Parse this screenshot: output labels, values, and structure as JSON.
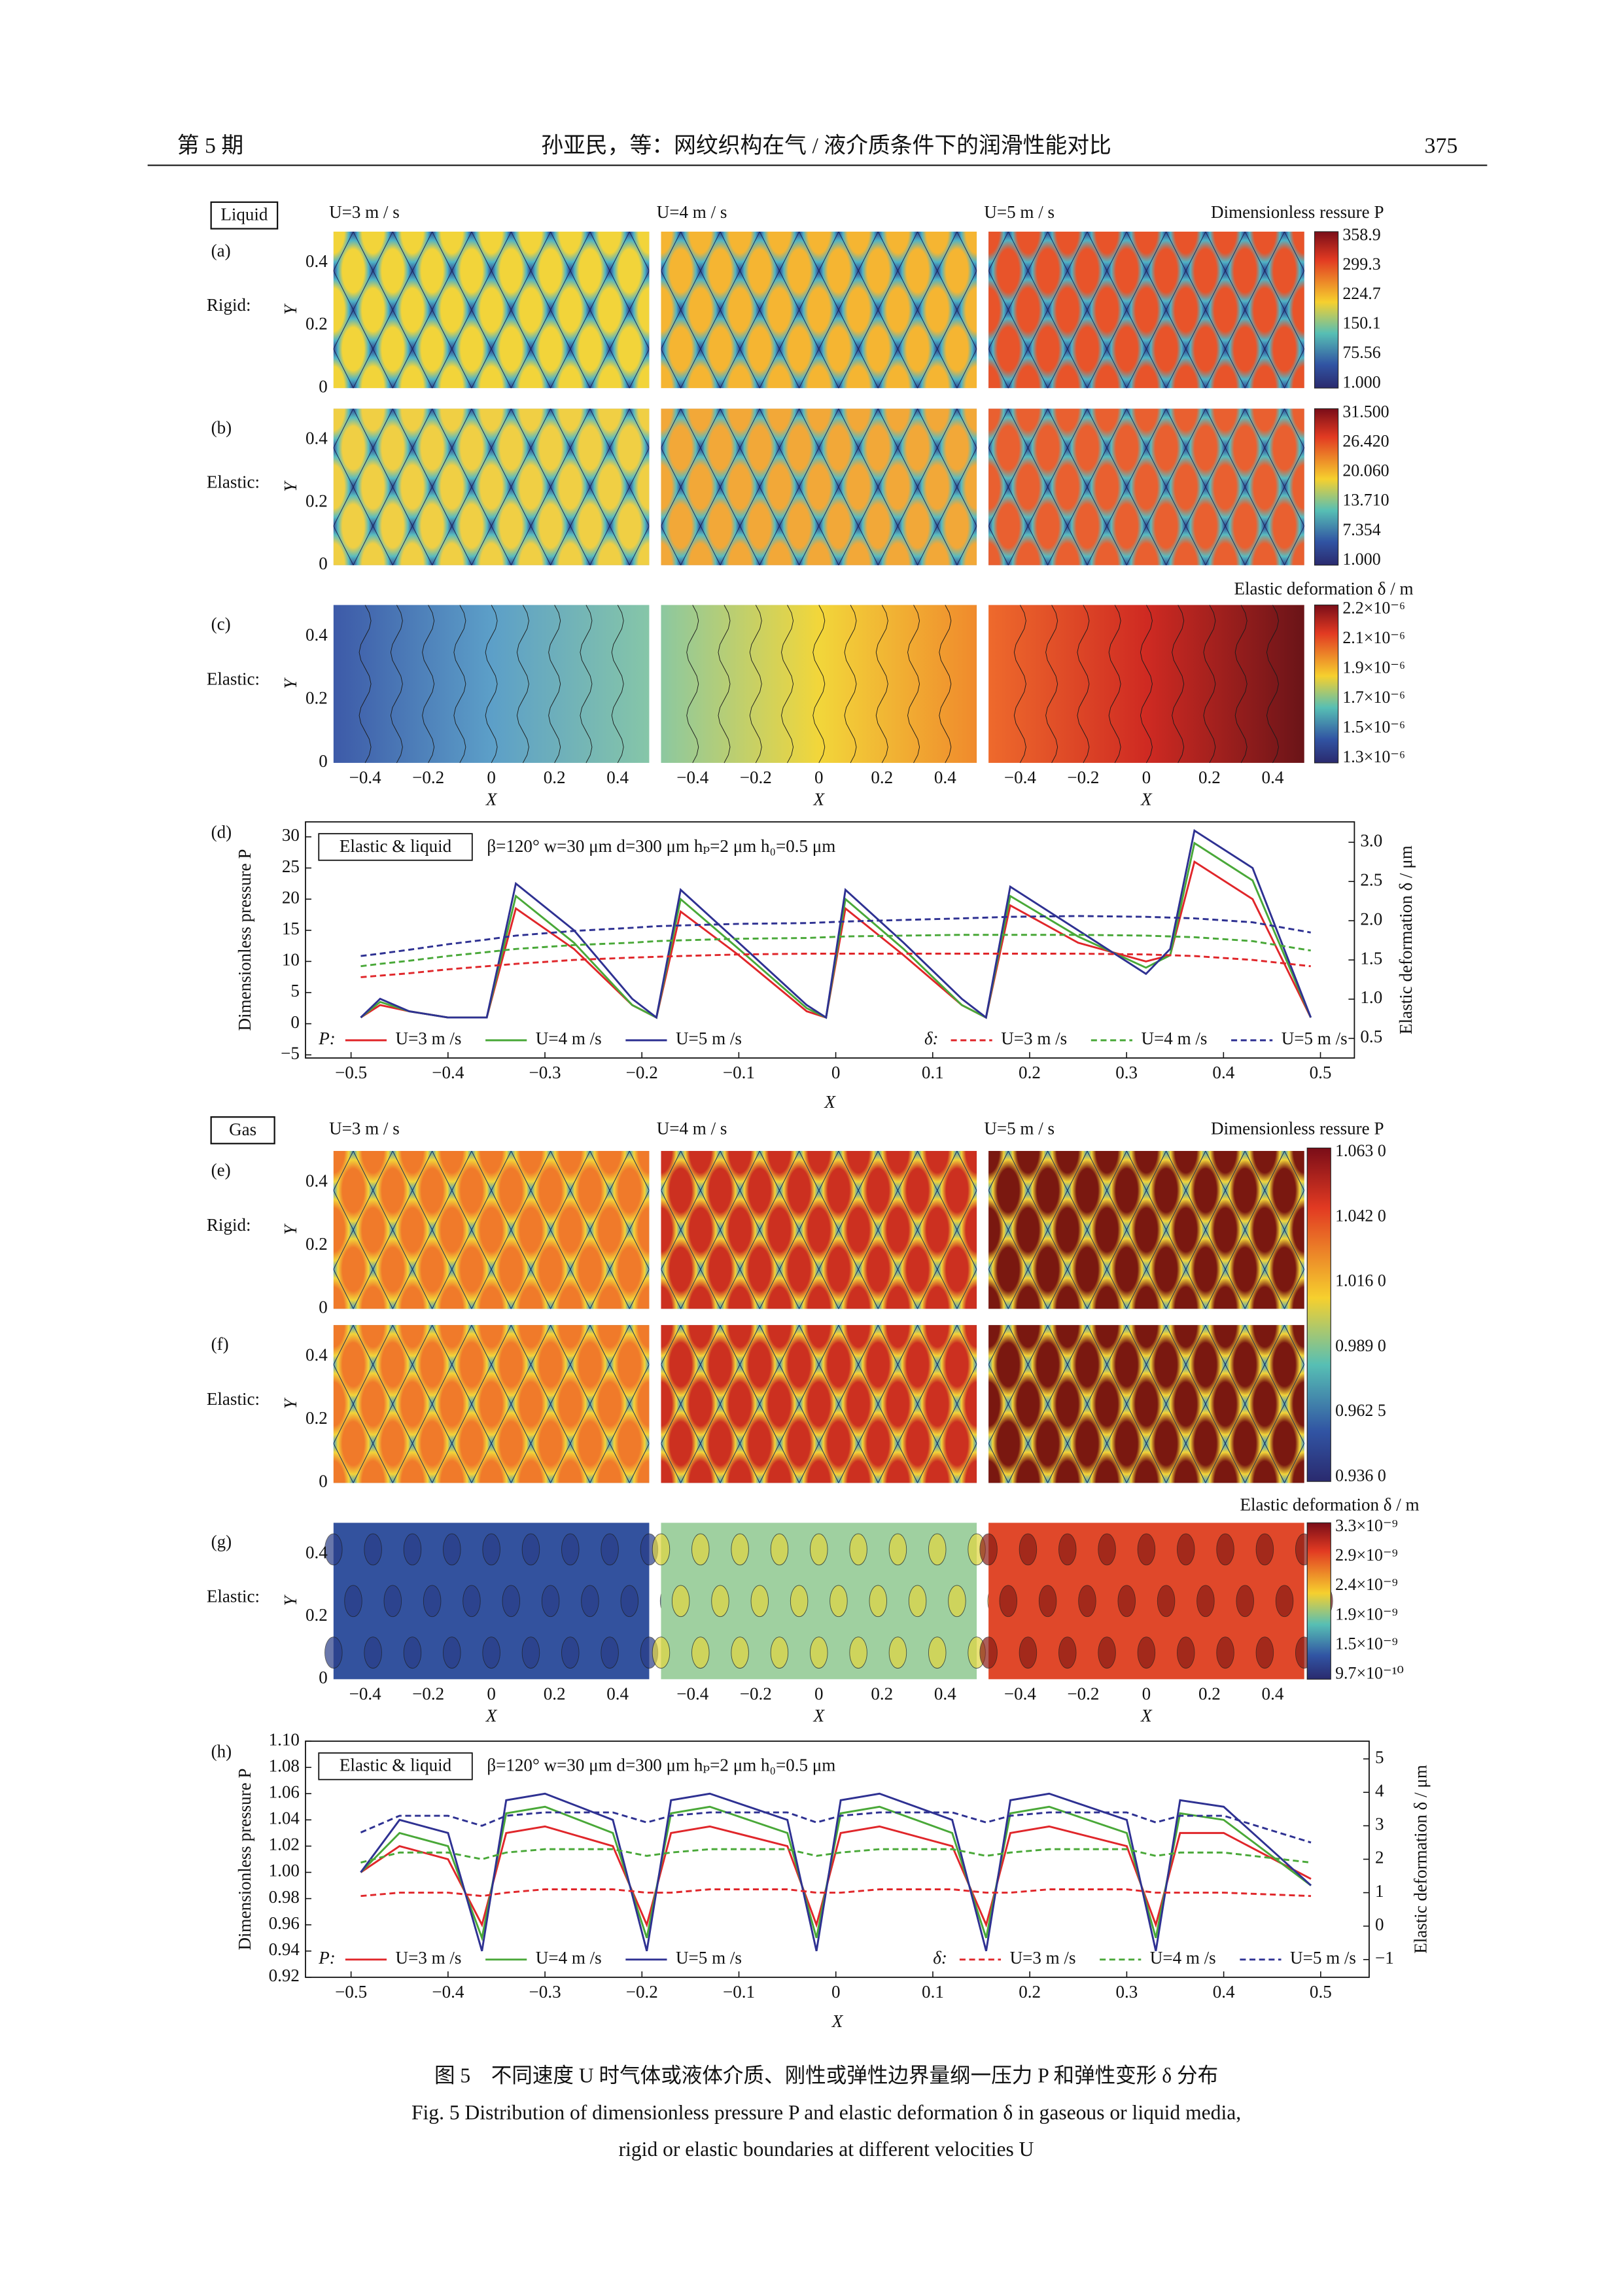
{
  "header": {
    "issue": "第 5 期",
    "title": "孙亚民，等：网纹织构在气 / 液介质条件下的润滑性能对比",
    "page": "375"
  },
  "map_axes": {
    "y_label": "Y",
    "x_label": "X",
    "yticks": [
      "0",
      "0.2",
      "0.4"
    ],
    "xticks": [
      "−0.4",
      "−0.2",
      "0",
      "0.2",
      "0.4"
    ]
  },
  "liquid": {
    "medium": "Liquid",
    "speeds": [
      "U=3 m / s",
      "U=4 m / s",
      "U=5 m / s"
    ],
    "pressure_title": "Dimensionless ressure P",
    "deformation_title": "Elastic deformation δ / m",
    "rows": [
      {
        "panel": "(a)",
        "boundary": "Rigid:",
        "colorbar": [
          "358.9",
          "299.3",
          "224.7",
          "150.1",
          "75.56",
          "1.000"
        ]
      },
      {
        "panel": "(b)",
        "boundary": "Elastic:",
        "colorbar": [
          "31.500",
          "26.420",
          "20.060",
          "13.710",
          "7.354",
          "1.000"
        ]
      },
      {
        "panel": "(c)",
        "boundary": "Elastic:",
        "colorbar": [
          "2.2×10⁻⁶",
          "2.1×10⁻⁶",
          "1.9×10⁻⁶",
          "1.7×10⁻⁶",
          "1.5×10⁻⁶",
          "1.3×10⁻⁶"
        ]
      }
    ]
  },
  "gas": {
    "medium": "Gas",
    "speeds": [
      "U=3 m / s",
      "U=4 m / s",
      "U=5 m / s"
    ],
    "pressure_title": "Dimensionless ressure P",
    "deformation_title": "Elastic deformation δ / m",
    "rows": [
      {
        "panel": "(e)",
        "boundary": "Rigid:"
      },
      {
        "panel": "(f)",
        "boundary": "Elastic:"
      },
      {
        "panel": "(g)",
        "boundary": "Elastic:"
      }
    ],
    "pressure_colorbar": [
      "1.063 0",
      "1.042 0",
      "1.016 0",
      "0.989 0",
      "0.962 5",
      "0.936 0"
    ],
    "deformation_colorbar": [
      "3.3×10⁻⁹",
      "2.9×10⁻⁹",
      "2.4×10⁻⁹",
      "1.9×10⁻⁹",
      "1.5×10⁻⁹",
      "9.7×10⁻¹⁰"
    ]
  },
  "chart_data": [
    {
      "type": "line",
      "panel": "(d)",
      "annotation_box": "Elastic & liquid",
      "annotation": "β=120°  w=30 μm  d=300  μm  hₚ=2 μm  h₀=0.5 μm",
      "xlabel": "X",
      "ylabel": "Dimensionless pressure P",
      "y2label": "Elastic deformation δ / μm",
      "legend_groups": [
        "P:",
        "δ:"
      ],
      "x": [
        -0.49,
        -0.47,
        -0.44,
        -0.4,
        -0.36,
        -0.33,
        -0.27,
        -0.21,
        -0.185,
        -0.16,
        -0.1,
        -0.03,
        -0.01,
        0.01,
        0.07,
        0.13,
        0.155,
        0.18,
        0.25,
        0.32,
        0.345,
        0.37,
        0.43,
        0.49
      ],
      "xlim": [
        -0.547,
        0.535
      ],
      "xticks": [
        {
          "value": -0.5,
          "label": "−0.5"
        },
        {
          "value": -0.4,
          "label": "−0.4"
        },
        {
          "value": -0.3,
          "label": "−0.3"
        },
        {
          "value": -0.2,
          "label": "−0.2"
        },
        {
          "value": -0.1,
          "label": "−0.1"
        },
        0,
        0.1,
        0.2,
        0.3,
        0.4,
        0.5
      ],
      "ylim": [
        -5.5,
        32.4
      ],
      "yticks": [
        {
          "value": -5,
          "label": "−5"
        },
        0,
        5,
        10,
        15,
        20,
        25,
        30
      ],
      "y2lim": [
        0.25,
        3.26
      ],
      "y2ticks": [
        0.5,
        {
          "value": 1,
          "label": "1.0"
        },
        1.5,
        {
          "value": 2,
          "label": "2.0"
        },
        2.5,
        {
          "value": 3,
          "label": "3.0"
        }
      ],
      "series": [
        {
          "name": "U=3 m /s",
          "color": "#e0262a",
          "values": [
            1,
            3,
            2,
            1,
            1,
            18.5,
            12,
            3,
            1,
            18,
            11,
            2,
            1,
            18.5,
            11,
            3,
            1,
            19,
            13,
            10,
            11,
            26,
            20,
            1
          ]
        },
        {
          "name": "U=4 m /s",
          "color": "#49a838",
          "values": [
            1,
            3.5,
            2,
            1,
            1,
            20.5,
            13,
            3,
            1,
            20,
            12,
            2.5,
            1,
            20,
            12,
            3,
            1,
            20.5,
            14,
            9,
            11,
            29,
            23,
            1
          ]
        },
        {
          "name": "U=5 m /s",
          "color": "#2e3192",
          "values": [
            1,
            4,
            2,
            1,
            1,
            22.5,
            15,
            4,
            1,
            21.5,
            13,
            3,
            1,
            21.5,
            13,
            4,
            1,
            22,
            15,
            8,
            12,
            31,
            25,
            1
          ]
        },
        {
          "name": "U=3 m /s",
          "color": "#e0262a",
          "axis": "y2",
          "dashed": true,
          "values": [
            1.28,
            1.3,
            1.33,
            1.38,
            1.42,
            1.45,
            1.5,
            1.53,
            1.54,
            1.55,
            1.57,
            1.58,
            1.58,
            1.58,
            1.58,
            1.58,
            1.58,
            1.58,
            1.58,
            1.57,
            1.56,
            1.55,
            1.5,
            1.42
          ]
        },
        {
          "name": "U=4 m /s",
          "color": "#49a838",
          "axis": "y2",
          "dashed": true,
          "values": [
            1.42,
            1.45,
            1.49,
            1.55,
            1.6,
            1.64,
            1.69,
            1.72,
            1.74,
            1.75,
            1.77,
            1.78,
            1.79,
            1.8,
            1.81,
            1.82,
            1.82,
            1.82,
            1.82,
            1.81,
            1.8,
            1.79,
            1.74,
            1.62
          ]
        },
        {
          "name": "U=5 m /s",
          "color": "#2e3192",
          "axis": "y2",
          "dashed": true,
          "values": [
            1.55,
            1.58,
            1.63,
            1.7,
            1.76,
            1.81,
            1.87,
            1.91,
            1.93,
            1.94,
            1.96,
            1.97,
            1.98,
            1.99,
            2.01,
            2.03,
            2.04,
            2.05,
            2.06,
            2.05,
            2.04,
            2.03,
            1.98,
            1.85
          ]
        }
      ]
    },
    {
      "type": "line",
      "panel": "(h)",
      "annotation_box": "Elastic & liquid",
      "annotation": "β=120°  w=30 μm  d=300  μm  hₚ=2 μm  h₀=0.5 μm",
      "xlabel": "X",
      "ylabel": "Dimensionless pressure P",
      "y2label": "Elastic deformation δ / μm",
      "legend_groups": [
        "P:",
        "δ:"
      ],
      "x": [
        -0.49,
        -0.45,
        -0.4,
        -0.365,
        -0.34,
        -0.3,
        -0.23,
        -0.195,
        -0.17,
        -0.13,
        -0.05,
        -0.02,
        0.005,
        0.045,
        0.12,
        0.155,
        0.18,
        0.22,
        0.3,
        0.33,
        0.355,
        0.4,
        0.49
      ],
      "xlim": [
        -0.547,
        0.55
      ],
      "xticks": [
        {
          "value": -0.5,
          "label": "−0.5"
        },
        {
          "value": -0.4,
          "label": "−0.4"
        },
        {
          "value": -0.3,
          "label": "−0.3"
        },
        {
          "value": -0.2,
          "label": "−0.2"
        },
        {
          "value": -0.1,
          "label": "−0.1"
        },
        0,
        0.1,
        0.2,
        0.3,
        0.4,
        0.5
      ],
      "ylim": [
        0.92,
        1.1
      ],
      "yticks": [
        0.92,
        0.94,
        0.96,
        0.98,
        {
          "value": 1,
          "label": "1.00"
        },
        1.02,
        1.04,
        1.06,
        1.08,
        {
          "value": 1.1,
          "label": "1.10"
        }
      ],
      "y2lim": [
        -1.53,
        5.53
      ],
      "y2ticks": [
        {
          "value": -1,
          "label": "−1"
        },
        0,
        1,
        2,
        3,
        4,
        5
      ],
      "series": [
        {
          "name": "U=3 m /s",
          "color": "#e0262a",
          "values": [
            1.0,
            1.02,
            1.01,
            0.96,
            1.03,
            1.035,
            1.02,
            0.96,
            1.03,
            1.035,
            1.02,
            0.96,
            1.03,
            1.035,
            1.02,
            0.96,
            1.03,
            1.035,
            1.02,
            0.96,
            1.03,
            1.03,
            0.995
          ]
        },
        {
          "name": "U=4 m /s",
          "color": "#49a838",
          "values": [
            1.0,
            1.03,
            1.02,
            0.95,
            1.045,
            1.05,
            1.03,
            0.95,
            1.045,
            1.05,
            1.03,
            0.95,
            1.045,
            1.05,
            1.03,
            0.95,
            1.045,
            1.05,
            1.03,
            0.95,
            1.045,
            1.04,
            0.99
          ]
        },
        {
          "name": "U=5 m /s",
          "color": "#2e3192",
          "values": [
            1.0,
            1.04,
            1.03,
            0.94,
            1.055,
            1.06,
            1.04,
            0.94,
            1.055,
            1.06,
            1.04,
            0.94,
            1.055,
            1.06,
            1.04,
            0.94,
            1.055,
            1.06,
            1.04,
            0.94,
            1.055,
            1.05,
            0.99
          ]
        },
        {
          "name": "U=3 m /s",
          "color": "#e0262a",
          "axis": "y2",
          "dashed": true,
          "values": [
            0.9,
            1.0,
            1.0,
            0.9,
            1.0,
            1.1,
            1.1,
            1.0,
            1.0,
            1.1,
            1.1,
            1.0,
            1.0,
            1.1,
            1.1,
            1.0,
            1.0,
            1.1,
            1.1,
            1.0,
            1.0,
            1.0,
            0.9
          ]
        },
        {
          "name": "U=4 m /s",
          "color": "#49a838",
          "axis": "y2",
          "dashed": true,
          "values": [
            1.9,
            2.2,
            2.2,
            2.0,
            2.2,
            2.3,
            2.3,
            2.1,
            2.2,
            2.3,
            2.3,
            2.1,
            2.2,
            2.3,
            2.3,
            2.1,
            2.2,
            2.3,
            2.3,
            2.1,
            2.2,
            2.2,
            1.9
          ]
        },
        {
          "name": "U=5 m /s",
          "color": "#2e3192",
          "axis": "y2",
          "dashed": true,
          "values": [
            2.8,
            3.3,
            3.3,
            3.0,
            3.3,
            3.4,
            3.4,
            3.1,
            3.3,
            3.4,
            3.4,
            3.1,
            3.3,
            3.4,
            3.4,
            3.1,
            3.3,
            3.4,
            3.4,
            3.1,
            3.3,
            3.3,
            2.5
          ]
        }
      ]
    }
  ],
  "caption": {
    "cn": "图 5　不同速度 U 时气体或液体介质、刚性或弹性边界量纲一压力 P 和弹性变形 δ 分布",
    "en": [
      "Fig. 5    Distribution of dimensionless pressure P and elastic deformation δ in gaseous or liquid media,",
      "rigid or elastic boundaries at different velocities U"
    ]
  }
}
